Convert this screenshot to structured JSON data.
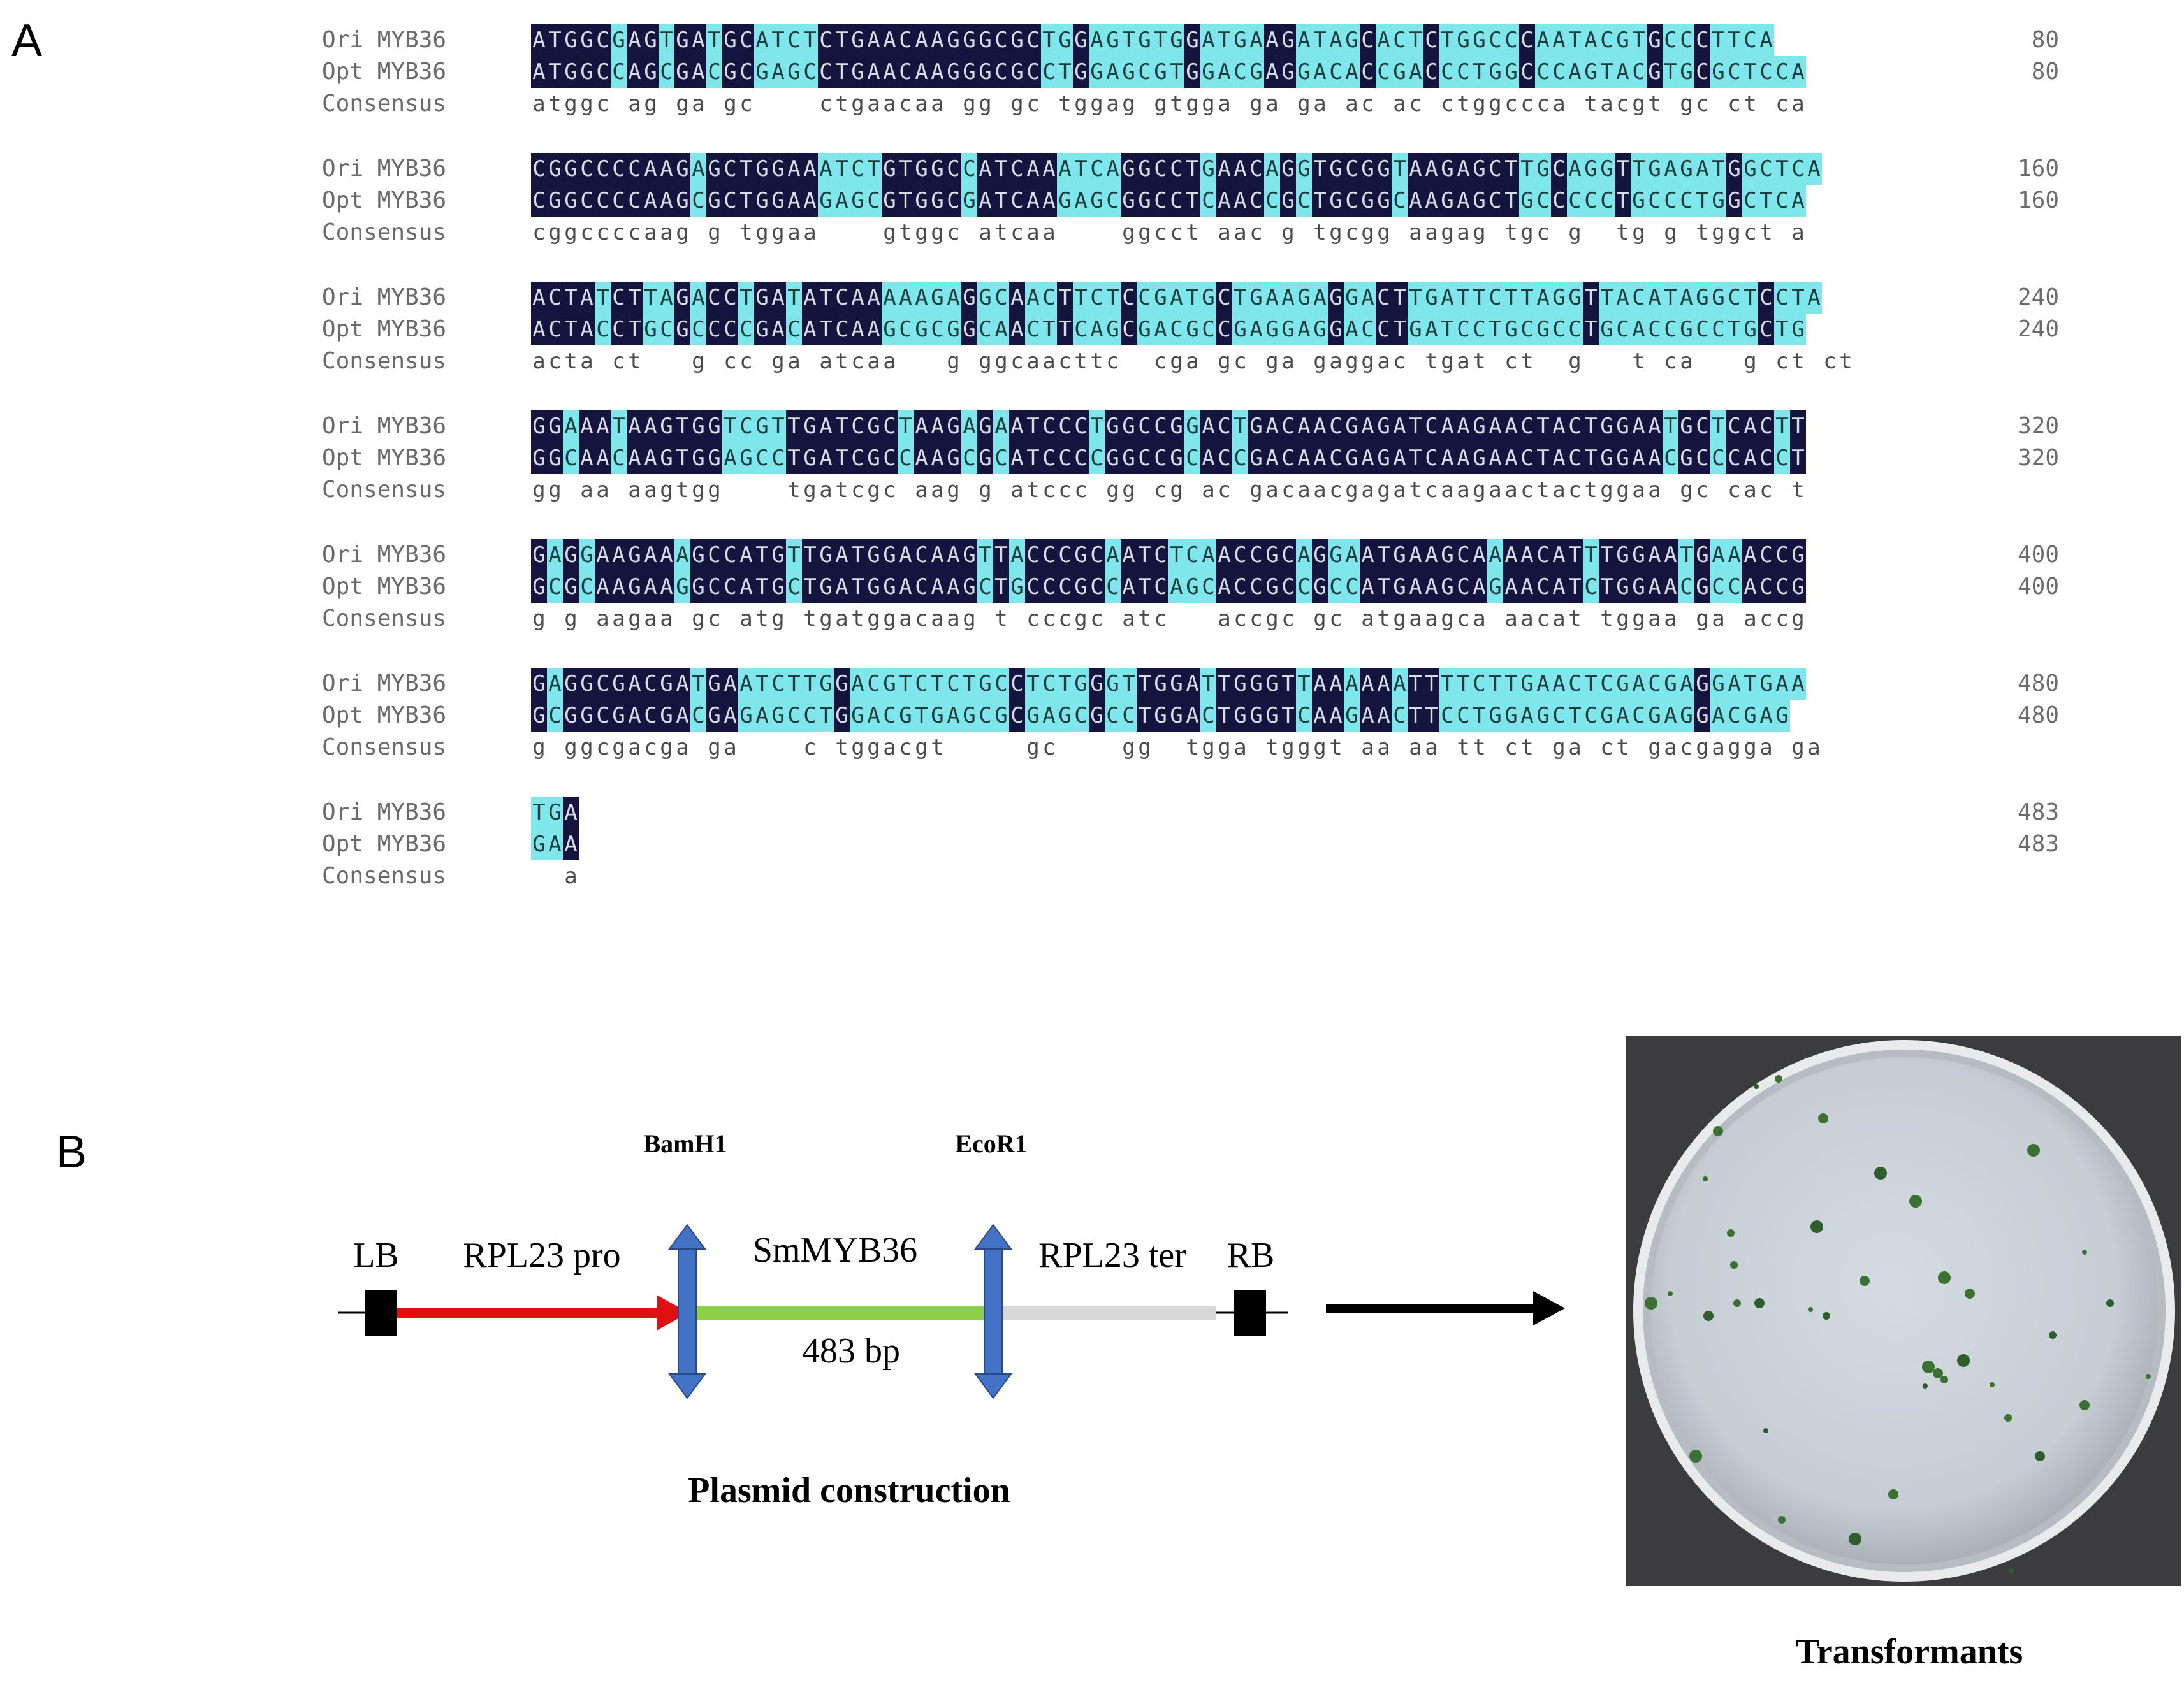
{
  "panel_labels": {
    "a": "A",
    "b": "B"
  },
  "alignment": {
    "rows": [
      {
        "ori_name": "Ori MYB36",
        "opt_name": "Opt MYB36",
        "cons_name": "Consensus",
        "ori": "ATGGCGAGTGATGCATCTCTGAACAAGGGCGCTGGAGTGTGGATGAAGATAGCACTCTGGCCCAATACGTGCCCTTCA",
        "opt": "ATGGCCAGCGACGCGAGCCTGAACAAGGGCGCCTGGAGCGTGGACGAGGACACCGACCCTGGCCCAGTACGTGCGCTCCA",
        "cons": "atggc ag ga gc    ctgaacaa gg gc tggag gtgga ga ga ac ac ctggccca tacgt gc ct ca",
        "end": "80"
      },
      {
        "ori_name": "Ori MYB36",
        "opt_name": "Opt MYB36",
        "cons_name": "Consensus",
        "ori": "CGGCCCCAAGAGCTGGAAATCTGTGGCCATCAAATCAGGCCTGAACAGGTGCGGTAAGAGCTTGCAGGTTGAGATGGCTCA",
        "opt": "CGGCCCCAAGCGCTGGAAGAGCGTGGCGATCAAGAGCGGCCTCAACCGCTGCGGCAAGAGCTGCCCCCTGCCCTGGCTCA",
        "cons": "cggccccaag g tggaa    gtggc atcaa    ggcct aac g tgcgg aagag tgc g  tg g tggct a",
        "end": "160"
      },
      {
        "ori_name": "Ori MYB36",
        "opt_name": "Opt MYB36",
        "cons_name": "Consensus",
        "ori": "ACTATCTTAGACCTGATATCAAAAAGAGGCAACTTCTCCGATGCTGAAGAGGACTTGATTCTTAGGTTACATAGGCTCCTA",
        "opt": "ACTACCTGCGCCCCGACATCAAGCGCGGCAACTTCAGCGACGCCGAGGAGGACCTGATCCTGCGCCTGCACCGCCTGCTG",
        "cons": "acta ct   g cc ga atcaa   g ggcaacttc  cga gc ga gaggac tgat ct  g   t ca   g ct ct",
        "end": "240"
      },
      {
        "ori_name": "Ori MYB36",
        "opt_name": "Opt MYB36",
        "cons_name": "Consensus",
        "ori": "GGAAATAAGTGGTCGTTGATCGCTAAGAGAATCCCTGGCCGGACTGACAACGAGATCAAGAACTACTGGAATGCTCACTT",
        "opt": "GGCAACAAGTGGAGCCTGATCGCCAAGCGCATCCCCGGCCGCACCGACAACGAGATCAAGAACTACTGGAACGCCCACCT",
        "cons": "gg aa aagtgg    tgatcgc aag g atccc gg cg ac gacaacgagatcaagaactactggaa gc cac t",
        "end": "320"
      },
      {
        "ori_name": "Ori MYB36",
        "opt_name": "Opt MYB36",
        "cons_name": "Consensus",
        "ori": "GAGGAAGAAAGCCATGTTGATGGACAAGTTACCCGCAATCTCAACCGCAGGAATGAAGCAAAACATTTGGAATGAAACCG",
        "opt": "GCGCAAGAAGGCCATGCTGATGGACAAGCTGCCCGCCATCAGCACCGCCGCCATGAAGCAGAACATCTGGAACGCCACCG",
        "cons": "g g aagaa gc atg tgatggacaag t cccgc atc   accgc gc atgaagca aacat tggaa ga accg",
        "end": "400"
      },
      {
        "ori_name": "Ori MYB36",
        "opt_name": "Opt MYB36",
        "cons_name": "Consensus",
        "ori": "GAGGCGACGATGAATCTTGGACGTCTCTGCCTCTGGGTTGGATTGGGTTAAAAAATTTTCTTGAACTCGACGAGGATGAA",
        "opt": "GCGGCGACGACGAGAGCCTGGACGTGAGCGCGAGCGCCTGGACTGGGTCAAGAACTTCCTGGAGCTCGACGAGGACGAG",
        "cons": "g ggcgacga ga    c tggacgt     gc    gg  tgga tgggt aa aa tt ct ga ct gacgagga ga",
        "end": "480"
      },
      {
        "ori_name": "Ori MYB36",
        "opt_name": "Opt MYB36",
        "cons_name": "Consensus",
        "ori": "TGA",
        "opt": "GAA",
        "cons": "  a",
        "end": "483"
      }
    ]
  },
  "construct": {
    "lb": "LB",
    "promoter": "RPL23 pro",
    "gene": "SmMYB36",
    "size": "483 bp",
    "terminator": "RPL23 ter",
    "rb": "RB",
    "site_left": "BamH1",
    "site_right": "EcoR1",
    "caption": "Plasmid construction",
    "colors": {
      "promoter": "#e01010",
      "gene": "#8cd04a",
      "terminator": "#d8d8d8",
      "site_arrow": "#4472c4",
      "border": "#000000"
    }
  },
  "photo": {
    "caption": "Transformants"
  }
}
